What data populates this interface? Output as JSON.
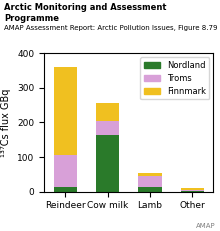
{
  "chart_data": {
    "type": "bar",
    "stacked": true,
    "title": "Arctic Monitoring and Assessment Programme",
    "subtitle": "AMAP Assessment Report: Arctic Pollution Issues, Figure 8.79",
    "y_label": "¹³⁷Cs flux GBq",
    "annotations": [
      "AMAP"
    ],
    "categories": [
      "Reindeer",
      "Cow milk",
      "Lamb",
      "Other"
    ],
    "series": [
      {
        "name": "Nordland",
        "color": "#2a7a2a",
        "values": [
          15,
          165,
          15,
          3
        ]
      },
      {
        "name": "Troms",
        "color": "#d8a0d8",
        "values": [
          90,
          40,
          30,
          3
        ]
      },
      {
        "name": "Finnmark",
        "color": "#f0c020",
        "values": [
          255,
          50,
          10,
          5
        ]
      }
    ],
    "ylim": [
      0,
      400
    ],
    "yticks": [
      0,
      100,
      200,
      300,
      400
    ],
    "grid": false,
    "legend": "upper right"
  }
}
